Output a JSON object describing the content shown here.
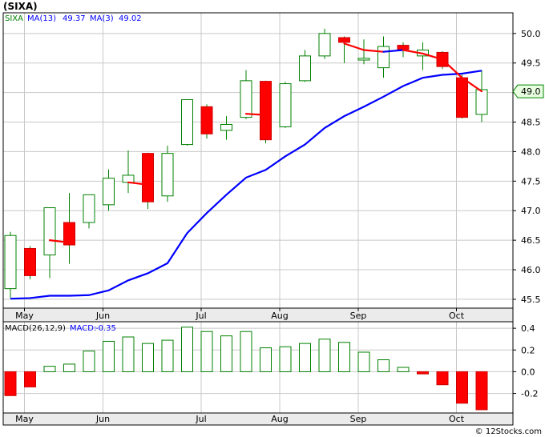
{
  "chart_data": {
    "type": "candlestick",
    "title": "(SIXA)",
    "footer": "© 12Stocks.com",
    "months": [
      {
        "label": "May",
        "index": 1
      },
      {
        "label": "Jun",
        "index": 5
      },
      {
        "label": "Jul",
        "index": 10
      },
      {
        "label": "Aug",
        "index": 14
      },
      {
        "label": "Sep",
        "index": 18
      },
      {
        "label": "Oct",
        "index": 23
      }
    ],
    "price_axis": {
      "ylim": [
        45.35,
        50.35
      ],
      "ticks": [
        45.5,
        46.0,
        46.5,
        47.0,
        47.5,
        48.0,
        48.5,
        49.0,
        49.5,
        50.0
      ],
      "tick_labels": [
        "45.5",
        "46.0",
        "46.5",
        "47.0",
        "47.5",
        "48.0",
        "48.5",
        "49.0",
        "49.5",
        "50.0"
      ],
      "current_label": "49.0",
      "current_value": 49.02
    },
    "legend": {
      "symbol": "SIXA",
      "ma13_label": "MA(13)",
      "ma13_value": "49.37",
      "ma3_label": "MA(3)",
      "ma3_value": "49.02",
      "ma13_color": "#0000ff",
      "ma3_color": "#ff0000"
    },
    "candles": [
      {
        "open": 45.68,
        "close": 46.58,
        "high": 46.64,
        "low": 45.52
      },
      {
        "open": 46.36,
        "close": 45.9,
        "high": 46.4,
        "low": 45.84
      },
      {
        "open": 46.25,
        "close": 47.05,
        "high": 47.05,
        "low": 45.86
      },
      {
        "open": 46.8,
        "close": 46.42,
        "high": 47.3,
        "low": 46.1
      },
      {
        "open": 46.8,
        "close": 47.27,
        "high": 47.27,
        "low": 46.7
      },
      {
        "open": 47.1,
        "close": 47.55,
        "high": 47.7,
        "low": 47.0
      },
      {
        "open": 47.48,
        "close": 47.6,
        "high": 48.02,
        "low": 47.3
      },
      {
        "open": 47.97,
        "close": 47.15,
        "high": 47.98,
        "low": 47.03
      },
      {
        "open": 47.25,
        "close": 47.97,
        "high": 48.1,
        "low": 47.15
      },
      {
        "open": 48.12,
        "close": 48.88,
        "high": 48.88,
        "low": 48.1
      },
      {
        "open": 48.76,
        "close": 48.3,
        "high": 48.8,
        "low": 48.22
      },
      {
        "open": 48.36,
        "close": 48.46,
        "high": 48.6,
        "low": 48.2
      },
      {
        "open": 48.58,
        "close": 49.2,
        "high": 49.38,
        "low": 48.55
      },
      {
        "open": 49.19,
        "close": 48.2,
        "high": 49.2,
        "low": 48.14
      },
      {
        "open": 48.42,
        "close": 49.15,
        "high": 49.18,
        "low": 48.4
      },
      {
        "open": 49.2,
        "close": 49.62,
        "high": 49.72,
        "low": 49.18
      },
      {
        "open": 49.62,
        "close": 50.0,
        "high": 50.08,
        "low": 49.57
      },
      {
        "open": 49.93,
        "close": 49.85,
        "high": 49.95,
        "low": 49.5
      },
      {
        "open": 49.55,
        "close": 49.58,
        "high": 49.9,
        "low": 49.48
      },
      {
        "open": 49.42,
        "close": 49.78,
        "high": 49.95,
        "low": 49.25
      },
      {
        "open": 49.8,
        "close": 49.73,
        "high": 49.85,
        "low": 49.6
      },
      {
        "open": 49.62,
        "close": 49.72,
        "high": 49.85,
        "low": 49.38
      },
      {
        "open": 49.68,
        "close": 49.44,
        "high": 49.7,
        "low": 49.4
      },
      {
        "open": 49.25,
        "close": 48.58,
        "high": 49.3,
        "low": 48.56
      },
      {
        "open": 48.63,
        "close": 49.05,
        "high": 49.38,
        "low": 48.5
      }
    ],
    "ma13": [
      45.51,
      45.52,
      45.56,
      45.56,
      45.57,
      45.65,
      45.82,
      45.94,
      46.11,
      46.62,
      46.96,
      47.27,
      47.56,
      47.69,
      47.92,
      48.12,
      48.4,
      48.6,
      48.76,
      48.93,
      49.11,
      49.25,
      49.3,
      49.32,
      49.37
    ],
    "ma3": [
      null,
      null,
      46.5,
      46.46,
      null,
      null,
      47.48,
      47.44,
      null,
      null,
      null,
      null,
      48.64,
      48.62,
      null,
      null,
      null,
      49.83,
      49.72,
      49.69,
      49.72,
      49.66,
      49.56,
      49.25,
      49.02
    ],
    "macd_axis": {
      "label": "MACD(26,12,9)",
      "value_label": "MACD:",
      "value": "-0.35",
      "ylim": [
        -0.38,
        0.46
      ],
      "ticks": [
        0.4,
        0.2,
        0.0,
        -0.2
      ],
      "tick_labels": [
        "0.4",
        "0.2",
        "0.0",
        "-0.2"
      ]
    },
    "macd": [
      -0.22,
      -0.14,
      0.05,
      0.07,
      0.19,
      0.28,
      0.32,
      0.26,
      0.29,
      0.41,
      0.37,
      0.33,
      0.37,
      0.22,
      0.23,
      0.26,
      0.3,
      0.27,
      0.18,
      0.11,
      0.04,
      -0.02,
      -0.12,
      -0.29,
      -0.35
    ],
    "colors": {
      "up_candle": "#ffffff",
      "down_candle": "#ff0000",
      "candle_outline": "#008000",
      "wick": "#008000",
      "grid": "#c8c8c8"
    }
  }
}
